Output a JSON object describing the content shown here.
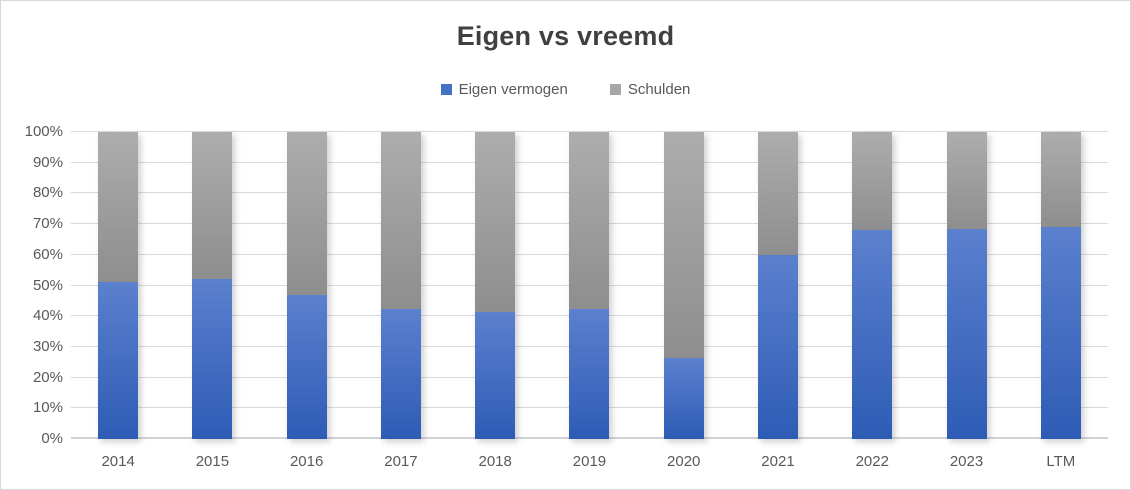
{
  "window": {
    "background": "#FFFFFF",
    "border_color": "#D8D8D8"
  },
  "chart_data": {
    "type": "bar",
    "subtype": "stacked-100-percent-column",
    "title": "Eigen vs vreemd",
    "title_color": "#404040",
    "categories": [
      "2014",
      "2015",
      "2016",
      "2017",
      "2018",
      "2019",
      "2020",
      "2021",
      "2022",
      "2023",
      "LTM"
    ],
    "series": [
      {
        "name": "Eigen vermogen",
        "values": [
          51,
          52,
          47,
          42.5,
          41.5,
          42.5,
          26.5,
          60,
          68,
          68.5,
          69
        ],
        "color": "#4472C4",
        "gradient_top": "#5B80CE",
        "gradient_bottom": "#2E5CB5"
      },
      {
        "name": "Schulden",
        "values": [
          49,
          48,
          53,
          57.5,
          58.5,
          57.5,
          73.5,
          40,
          32,
          31.5,
          31
        ],
        "color": "#A6A6A6",
        "gradient_top": "#ADADAD",
        "gradient_bottom": "#8E8E8E"
      }
    ],
    "xlabel": "",
    "ylabel": "",
    "ylim": [
      0,
      100
    ],
    "y_ticks": [
      "0%",
      "10%",
      "20%",
      "30%",
      "40%",
      "50%",
      "60%",
      "70%",
      "80%",
      "90%",
      "100%"
    ],
    "grid": "horizontal",
    "gridline_color": "#D9D9D9",
    "axis_text_color": "#595959",
    "legend_position": "top"
  }
}
